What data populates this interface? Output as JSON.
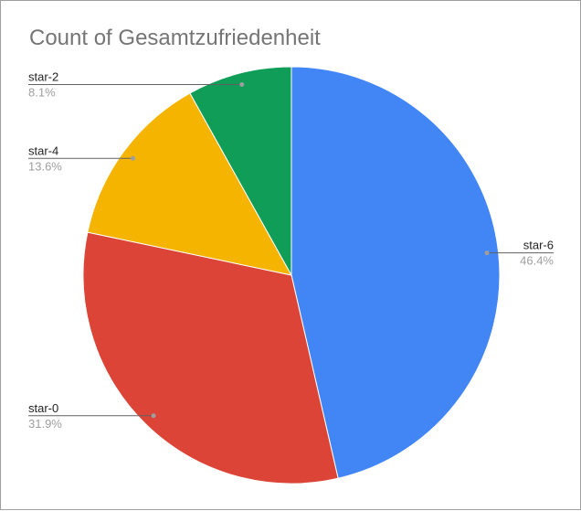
{
  "chart_data": {
    "type": "pie",
    "title": "Count of Gesamtzufriedenheit",
    "start_angle_deg": 0,
    "direction": "clockwise",
    "slices": [
      {
        "label": "star-6",
        "percent_label": "46.4%",
        "value": 46.4,
        "color": "#4285f4"
      },
      {
        "label": "star-0",
        "percent_label": "31.9%",
        "value": 31.9,
        "color": "#db4437"
      },
      {
        "label": "star-4",
        "percent_label": "13.6%",
        "value": 13.6,
        "color": "#f4b400"
      },
      {
        "label": "star-2",
        "percent_label": "8.1%",
        "value": 8.1,
        "color": "#0f9d58"
      }
    ]
  }
}
